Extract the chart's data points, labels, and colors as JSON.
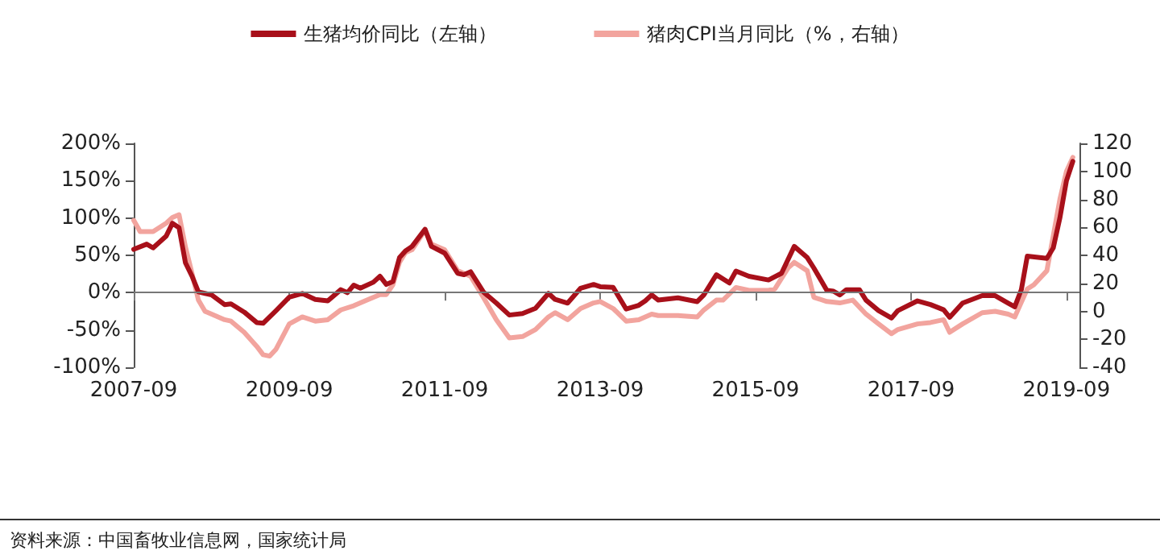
{
  "chart_data": {
    "type": "line",
    "series": [
      {
        "name": "生猪均价同比（左轴）",
        "color": "#a8101a",
        "x": [
          "2007-09",
          "2007-11",
          "2007-12",
          "2008-02",
          "2008-03",
          "2008-04",
          "2008-05",
          "2008-06",
          "2008-07",
          "2008-09",
          "2008-11",
          "2008-12",
          "2009-02",
          "2009-04",
          "2009-05",
          "2009-07",
          "2009-09",
          "2009-11",
          "2010-01",
          "2010-03",
          "2010-05",
          "2010-06",
          "2010-07",
          "2010-08",
          "2010-10",
          "2010-11",
          "2010-12",
          "2011-01",
          "2011-02",
          "2011-03",
          "2011-04",
          "2011-06",
          "2011-07",
          "2011-09",
          "2011-11",
          "2011-12",
          "2012-01",
          "2012-03",
          "2012-05",
          "2012-07",
          "2012-09",
          "2012-11",
          "2013-01",
          "2013-02",
          "2013-04",
          "2013-06",
          "2013-08",
          "2013-09",
          "2013-11",
          "2014-01",
          "2014-03",
          "2014-04",
          "2014-05",
          "2014-06",
          "2014-09",
          "2014-12",
          "2015-01",
          "2015-03",
          "2015-05",
          "2015-06",
          "2015-08",
          "2015-11",
          "2016-01",
          "2016-03",
          "2016-05",
          "2016-06",
          "2016-08",
          "2016-09",
          "2016-10",
          "2016-11",
          "2017-01",
          "2017-02",
          "2017-04",
          "2017-06",
          "2017-07",
          "2017-10",
          "2017-12",
          "2018-02",
          "2018-03",
          "2018-05",
          "2018-08",
          "2018-10",
          "2018-12",
          "2019-01",
          "2019-02",
          "2019-03",
          "2019-06",
          "2019-07",
          "2019-08",
          "2019-09",
          "2019-10"
        ],
        "values": [
          58,
          65,
          60,
          76,
          93,
          87,
          40,
          22,
          1,
          -3,
          -16,
          -15,
          -26,
          -40,
          -41,
          -24,
          -6,
          -1,
          -9,
          -11,
          4,
          0,
          10,
          6,
          14,
          22,
          11,
          15,
          47,
          56,
          62,
          85,
          62,
          53,
          26,
          24,
          28,
          1,
          -14,
          -30,
          -28,
          -21,
          -1,
          -9,
          -14,
          6,
          11,
          8,
          7,
          -22,
          -17,
          -11,
          -3,
          -10,
          -7,
          -12,
          -3,
          24,
          13,
          29,
          22,
          17,
          26,
          62,
          47,
          33,
          3,
          2,
          -3,
          4,
          4,
          -10,
          -24,
          -34,
          -24,
          -11,
          -16,
          -23,
          -33,
          -14,
          -4,
          -4,
          -14,
          -19,
          4,
          49,
          46,
          60,
          100,
          150,
          176
        ]
      },
      {
        "name": "猪肉CPI当月同比（%，右轴）",
        "color": "#f2a49e",
        "axis": "y2",
        "x": [
          "2007-09",
          "2007-10",
          "2007-12",
          "2008-02",
          "2008-03",
          "2008-04",
          "2008-05",
          "2008-06",
          "2008-07",
          "2008-08",
          "2008-09",
          "2008-11",
          "2008-12",
          "2009-02",
          "2009-04",
          "2009-05",
          "2009-06",
          "2009-07",
          "2009-09",
          "2009-11",
          "2010-01",
          "2010-03",
          "2010-05",
          "2010-07",
          "2010-09",
          "2010-11",
          "2010-12",
          "2011-01",
          "2011-02",
          "2011-03",
          "2011-04",
          "2011-06",
          "2011-07",
          "2011-09",
          "2011-11",
          "2012-01",
          "2012-03",
          "2012-05",
          "2012-07",
          "2012-09",
          "2012-11",
          "2013-01",
          "2013-02",
          "2013-04",
          "2013-06",
          "2013-08",
          "2013-09",
          "2013-11",
          "2014-01",
          "2014-03",
          "2014-05",
          "2014-06",
          "2014-09",
          "2014-12",
          "2015-01",
          "2015-03",
          "2015-04",
          "2015-06",
          "2015-08",
          "2015-11",
          "2015-12",
          "2016-02",
          "2016-03",
          "2016-05",
          "2016-06",
          "2016-08",
          "2016-10",
          "2016-12",
          "2017-02",
          "2017-04",
          "2017-06",
          "2017-07",
          "2017-10",
          "2017-12",
          "2018-02",
          "2018-03",
          "2018-05",
          "2018-08",
          "2018-10",
          "2018-12",
          "2019-01",
          "2019-03",
          "2019-04",
          "2019-06",
          "2019-07",
          "2019-08",
          "2019-09",
          "2019-10"
        ],
        "values": [
          65,
          57,
          57,
          63,
          67,
          69,
          46,
          27,
          8,
          0,
          -2,
          -6,
          -7,
          -15,
          -25,
          -31,
          -32,
          -27,
          -9,
          -4,
          -7,
          -6,
          1,
          4,
          8,
          12,
          12,
          19,
          35,
          42,
          44,
          58,
          48,
          44,
          29,
          25,
          10,
          -6,
          -19,
          -18,
          -13,
          -4,
          -1,
          -6,
          2,
          6,
          7,
          2,
          -7,
          -6,
          -2,
          -3,
          -3,
          -4,
          1,
          8,
          8,
          17,
          15,
          15,
          16,
          31,
          35,
          29,
          10,
          7,
          6,
          8,
          -2,
          -9,
          -16,
          -13,
          -9,
          -8,
          -6,
          -15,
          -9,
          -1,
          0,
          -2,
          -4,
          16,
          19,
          29,
          54,
          80,
          100,
          110
        ]
      }
    ],
    "xlim": [
      "2007-09",
      "2019-11"
    ],
    "xticks": [
      "2007-09",
      "2009-09",
      "2011-09",
      "2013-09",
      "2015-09",
      "2017-09",
      "2019-09"
    ],
    "ylim": [
      -100,
      200
    ],
    "yticks": [
      {
        "value": -100,
        "label": "-100%"
      },
      {
        "value": -50,
        "label": "-50%"
      },
      {
        "value": 0,
        "label": "0%"
      },
      {
        "value": 50,
        "label": "50%"
      },
      {
        "value": 100,
        "label": "100%"
      },
      {
        "value": 150,
        "label": "150%"
      },
      {
        "value": 200,
        "label": "200%"
      }
    ],
    "y2lim": [
      -40,
      120
    ],
    "y2ticks": [
      -40,
      -20,
      0,
      20,
      40,
      60,
      80,
      100,
      120
    ],
    "legend": "top",
    "grid": false,
    "ref_lines": [
      {
        "axis": "y",
        "value": 0,
        "color": "#777777"
      }
    ],
    "marker": "none",
    "line_style": "solid",
    "annotations": [
      "资料来源：中国畜牧业信息网，国家统计局"
    ]
  }
}
